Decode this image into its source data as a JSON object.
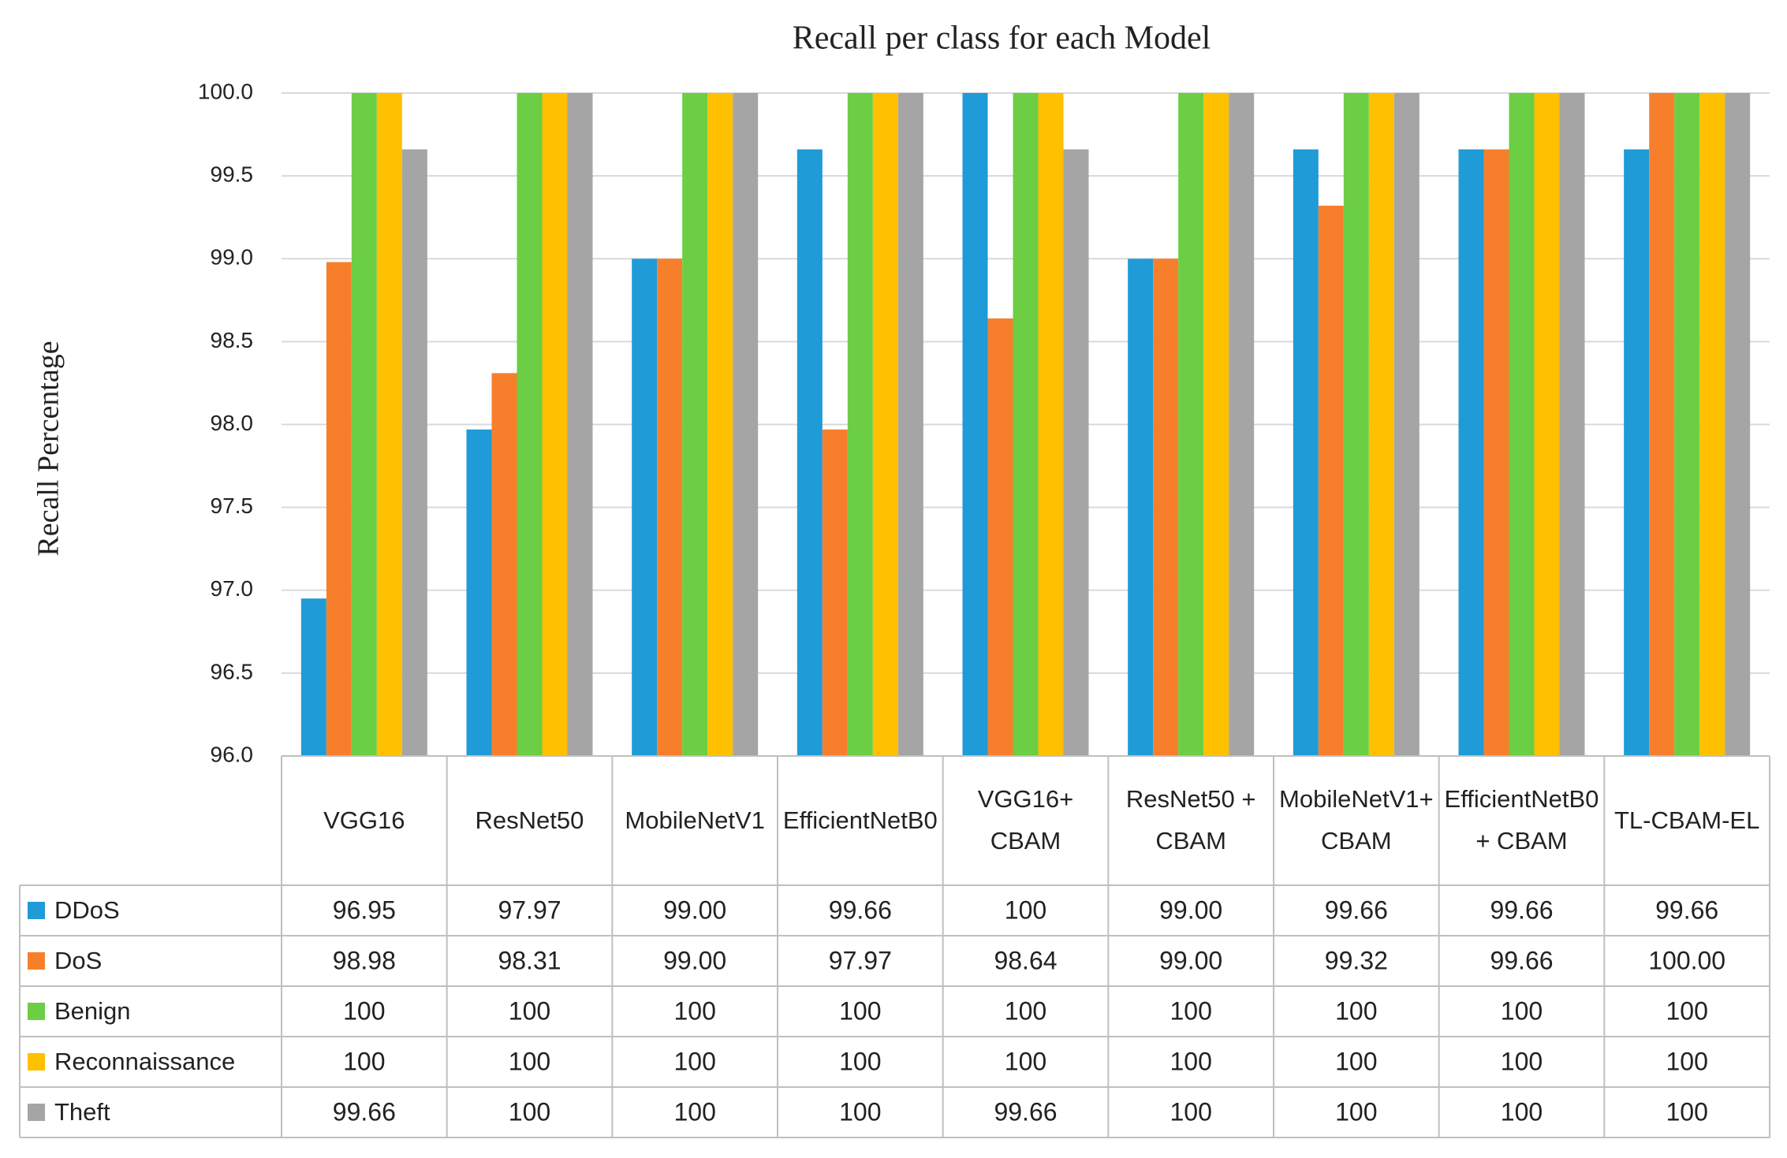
{
  "chart_data": {
    "type": "bar",
    "title": "Recall per class for each Model",
    "y_label": "Recall Percentage",
    "categories": [
      "VGG16",
      "ResNet50",
      "MobileNetV1",
      "EfficientNetB0",
      "VGG16+ CBAM",
      "ResNet50 + CBAM",
      "MobileNetV1+ CBAM",
      "EfficientNetB0 + CBAM",
      "TL-CBAM-EL"
    ],
    "series": [
      {
        "name": "DDoS",
        "color": "#1f9bd7",
        "values": [
          96.95,
          97.97,
          99,
          99.66,
          100,
          99,
          99.66,
          99.66,
          99.66
        ],
        "value_labels": [
          "96.95",
          "97.97",
          "99.00",
          "99.66",
          "100",
          "99.00",
          "99.66",
          "99.66",
          "99.66"
        ]
      },
      {
        "name": "DoS",
        "color": "#f77f2c",
        "values": [
          98.98,
          98.31,
          99,
          97.97,
          98.64,
          99,
          99.32,
          99.66,
          100
        ],
        "value_labels": [
          "98.98",
          "98.31",
          "99.00",
          "97.97",
          "98.64",
          "99.00",
          "99.32",
          "99.66",
          "100.00"
        ]
      },
      {
        "name": "Benign",
        "color": "#6bce44",
        "values": [
          100,
          100,
          100,
          100,
          100,
          100,
          100,
          100,
          100
        ],
        "value_labels": [
          "100",
          "100",
          "100",
          "100",
          "100",
          "100",
          "100",
          "100",
          "100"
        ]
      },
      {
        "name": "Reconnaissance",
        "color": "#ffc000",
        "values": [
          100,
          100,
          100,
          100,
          100,
          100,
          100,
          100,
          100
        ],
        "value_labels": [
          "100",
          "100",
          "100",
          "100",
          "100",
          "100",
          "100",
          "100",
          "100"
        ]
      },
      {
        "name": "Theft",
        "color": "#a5a5a5",
        "values": [
          99.66,
          100,
          100,
          100,
          99.66,
          100,
          100,
          100,
          100
        ],
        "value_labels": [
          "99.66",
          "100",
          "100",
          "100",
          "99.66",
          "100",
          "100",
          "100",
          "100"
        ]
      }
    ],
    "ylim": [
      96,
      100
    ],
    "yticks": [
      {
        "value": 96,
        "label": "96.0"
      },
      {
        "value": 96.5,
        "label": "96.5"
      },
      {
        "value": 97,
        "label": "97.0"
      },
      {
        "value": 97.5,
        "label": "97.5"
      },
      {
        "value": 98,
        "label": "98.0"
      },
      {
        "value": 98.5,
        "label": "98.5"
      },
      {
        "value": 99,
        "label": "99.0"
      },
      {
        "value": 99.5,
        "label": "99.5"
      },
      {
        "value": 100,
        "label": "100.0"
      }
    ],
    "grid": true
  }
}
